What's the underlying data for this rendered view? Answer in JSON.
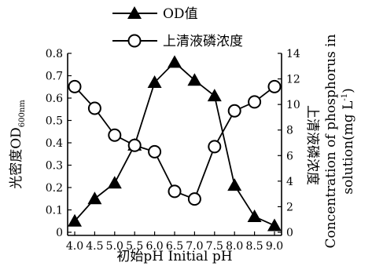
{
  "chart_data": {
    "type": "line",
    "x": [
      4.0,
      4.5,
      5.0,
      5.5,
      6.0,
      6.5,
      7.0,
      7.5,
      8.0,
      8.5,
      9.0
    ],
    "x_tick_labels": [
      "4.0",
      "4.5",
      "5.0",
      "5.5",
      "6.0",
      "6.5",
      "7.0",
      "7.5",
      "8.0",
      "8.5",
      "9.0"
    ],
    "xlabel": "初始pH Initial pH",
    "xlim": [
      4.0,
      9.0
    ],
    "y_left": {
      "label": "光密度OD",
      "label_subscript": "600nm",
      "ylim": [
        0,
        0.8
      ],
      "ticks": [
        "0",
        "0.1",
        "0.2",
        "0.3",
        "0.4",
        "0.5",
        "0.6",
        "0.7",
        "0.8"
      ]
    },
    "y_right": {
      "label_cn": "上清液磷浓度",
      "label_en_line1": "Concentration of phosphorus in",
      "label_en_line2": "solution(mg L",
      "label_en_sup": "-1",
      "label_en_end": ")",
      "ylim": [
        0,
        14
      ],
      "ticks": [
        "0",
        "2",
        "4",
        "6",
        "8",
        "10",
        "12",
        "14"
      ]
    },
    "series": [
      {
        "name": "OD值",
        "axis": "left",
        "marker": "triangle",
        "values": [
          0.05,
          0.15,
          0.22,
          0.39,
          0.67,
          0.76,
          0.68,
          0.61,
          0.21,
          0.07,
          0.03
        ]
      },
      {
        "name": "上清液磷浓度",
        "axis": "right",
        "marker": "circle",
        "values": [
          11.4,
          9.7,
          7.6,
          6.8,
          6.3,
          3.2,
          2.6,
          6.7,
          9.5,
          10.2,
          11.4
        ]
      }
    ],
    "legend_position": "top",
    "grid": false
  }
}
